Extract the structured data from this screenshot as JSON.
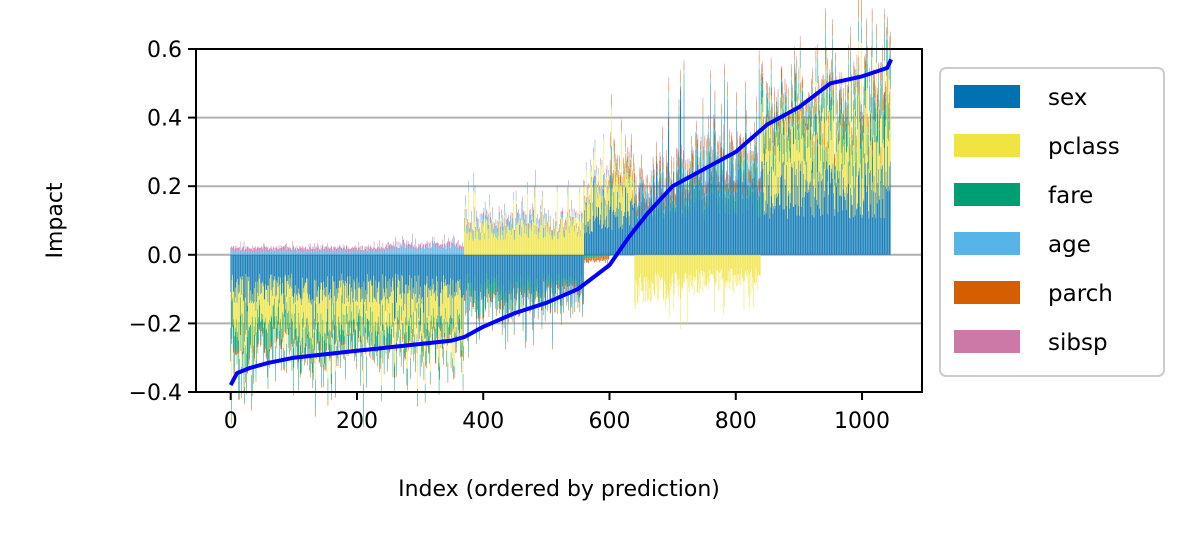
{
  "chart_data": {
    "type": "bar",
    "subtype": "stacked-signed-bars-with-line",
    "title": "",
    "xlabel": "Index (ordered by prediction)",
    "ylabel": "Impact",
    "xlim": [
      -55,
      1095
    ],
    "ylim": [
      -0.4,
      0.6
    ],
    "x_ticks": [
      0,
      200,
      400,
      600,
      800,
      1000
    ],
    "x_tick_labels": [
      "0",
      "200",
      "400",
      "600",
      "800",
      "1000"
    ],
    "y_ticks": [
      -0.4,
      -0.2,
      0.0,
      0.2,
      0.4,
      0.6
    ],
    "y_tick_labels": [
      "−0.4",
      "−0.2",
      "0.0",
      "0.2",
      "0.4",
      "0.6"
    ],
    "grid": "horizontal",
    "legend_position": "outside-right",
    "n_samples": 1046,
    "prediction_line": {
      "color": "#0000ff",
      "points": [
        [
          0,
          -0.38
        ],
        [
          10,
          -0.345
        ],
        [
          30,
          -0.33
        ],
        [
          60,
          -0.315
        ],
        [
          100,
          -0.3
        ],
        [
          150,
          -0.29
        ],
        [
          200,
          -0.28
        ],
        [
          250,
          -0.27
        ],
        [
          300,
          -0.26
        ],
        [
          350,
          -0.25
        ],
        [
          370,
          -0.24
        ],
        [
          400,
          -0.21
        ],
        [
          450,
          -0.17
        ],
        [
          500,
          -0.14
        ],
        [
          550,
          -0.1
        ],
        [
          600,
          -0.03
        ],
        [
          630,
          0.05
        ],
        [
          660,
          0.12
        ],
        [
          700,
          0.2
        ],
        [
          750,
          0.25
        ],
        [
          800,
          0.3
        ],
        [
          850,
          0.38
        ],
        [
          900,
          0.43
        ],
        [
          950,
          0.5
        ],
        [
          1000,
          0.52
        ],
        [
          1040,
          0.545
        ],
        [
          1046,
          0.57
        ]
      ]
    },
    "series": [
      {
        "name": "sex",
        "color": "#0072b2",
        "segments": [
          {
            "x_start": 0,
            "x_end": 560,
            "value_start": -0.1,
            "value_end": -0.1
          },
          {
            "x_start": 560,
            "x_end": 720,
            "value_start": 0.1,
            "value_end": 0.19
          },
          {
            "x_start": 720,
            "x_end": 1046,
            "value_start": 0.19,
            "value_end": 0.19
          }
        ]
      },
      {
        "name": "pclass",
        "color": "#f0e442",
        "segments": [
          {
            "x_start": 0,
            "x_end": 370,
            "value_start": -0.1,
            "value_end": -0.1
          },
          {
            "x_start": 370,
            "x_end": 640,
            "value_start": 0.07,
            "value_end": 0.09
          },
          {
            "x_start": 640,
            "x_end": 840,
            "value_start": -0.1,
            "value_end": -0.06
          },
          {
            "x_start": 840,
            "x_end": 1046,
            "value_start": 0.13,
            "value_end": 0.16
          }
        ]
      },
      {
        "name": "fare",
        "color": "#009e73",
        "segments": [
          {
            "x_start": 0,
            "x_end": 400,
            "value_start": -0.08,
            "value_end": -0.03
          },
          {
            "x_start": 400,
            "x_end": 720,
            "value_start": -0.04,
            "value_end": 0.02
          },
          {
            "x_start": 720,
            "x_end": 1046,
            "value_start": 0.03,
            "value_end": 0.08
          }
        ]
      },
      {
        "name": "age",
        "color": "#56b4e9",
        "segments": [
          {
            "x_start": 0,
            "x_end": 250,
            "value_start": 0.01,
            "value_end": 0.01
          },
          {
            "x_start": 250,
            "x_end": 500,
            "value_start": 0.02,
            "value_end": 0.02
          },
          {
            "x_start": 500,
            "x_end": 1046,
            "value_start": 0.01,
            "value_end": 0.01
          }
        ]
      },
      {
        "name": "parch",
        "color": "#d55e00",
        "segments": [
          {
            "x_start": 0,
            "x_end": 600,
            "value_start": -0.01,
            "value_end": -0.01
          },
          {
            "x_start": 600,
            "x_end": 1046,
            "value_start": 0.02,
            "value_end": 0.03
          }
        ]
      },
      {
        "name": "sibsp",
        "color": "#cc79a7",
        "segments": [
          {
            "x_start": 0,
            "x_end": 1046,
            "value_start": 0.01,
            "value_end": 0.01
          }
        ]
      }
    ]
  }
}
